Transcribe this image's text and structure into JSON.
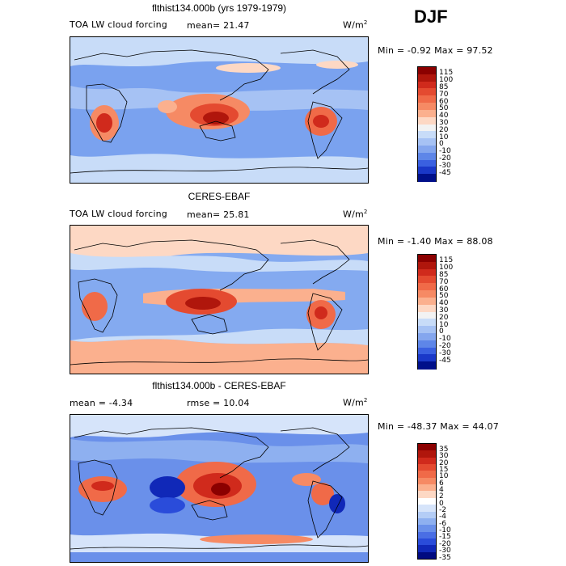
{
  "season": "DJF",
  "panels": [
    {
      "title": "flthist134.000b (yrs 1979-1979)",
      "left_label": "TOA LW cloud forcing",
      "stat": "mean=  21.47",
      "units": "W/m",
      "units_sup": "2",
      "minmax": "Min =  -0.92 Max =  97.52",
      "cbar_labels": [
        "115",
        "100",
        "85",
        "70",
        "60",
        "50",
        "40",
        "30",
        "20",
        "10",
        "0",
        "-10",
        "-20",
        "-30",
        "-45"
      ],
      "cbar_colors": [
        "#8b0000",
        "#b0160c",
        "#d02a1c",
        "#e44a30",
        "#f06a48",
        "#f68a64",
        "#fbb08e",
        "#fdd8c4",
        "#f2f2f2",
        "#c8dcf8",
        "#a6c2f4",
        "#84a6ee",
        "#5e86e8",
        "#3a60e0",
        "#1a38c8",
        "#00108a"
      ],
      "base_color": "#7aa2ef"
    },
    {
      "title": "CERES-EBAF",
      "left_label": "TOA LW cloud forcing",
      "stat": "mean=  25.81",
      "units": "W/m",
      "units_sup": "2",
      "minmax": "Min =  -1.40 Max =  88.08",
      "cbar_labels": [
        "115",
        "100",
        "85",
        "70",
        "60",
        "50",
        "40",
        "30",
        "20",
        "10",
        "0",
        "-10",
        "-20",
        "-30",
        "-45"
      ],
      "cbar_colors": [
        "#8b0000",
        "#b0160c",
        "#d02a1c",
        "#e44a30",
        "#f06a48",
        "#f68a64",
        "#fbb08e",
        "#fdd8c4",
        "#f2f2f2",
        "#c8dcf8",
        "#a6c2f4",
        "#84a6ee",
        "#5e86e8",
        "#3a60e0",
        "#1a38c8",
        "#00108a"
      ],
      "base_color": "#84aaf0"
    },
    {
      "title": "flthist134.000b - CERES-EBAF",
      "left_label": "mean =  -4.34",
      "stat": "rmse =  10.04",
      "units": "W/m",
      "units_sup": "2",
      "minmax": "Min = -48.37 Max =  44.07",
      "cbar_labels": [
        "35",
        "30",
        "20",
        "15",
        "10",
        "6",
        "4",
        "2",
        "0",
        "-2",
        "-4",
        "-6",
        "-10",
        "-15",
        "-20",
        "-30",
        "-35"
      ],
      "cbar_colors": [
        "#8b0000",
        "#b0160c",
        "#d02a1c",
        "#e44a30",
        "#f06a48",
        "#f68a64",
        "#fbb08e",
        "#fdd8c4",
        "#ffffff",
        "#d6e4fa",
        "#b4cdf6",
        "#8eb0f0",
        "#6a90ea",
        "#4a6ee4",
        "#2a4cda",
        "#1028b8",
        "#000a80"
      ],
      "base_color": "#6a90ea"
    }
  ]
}
